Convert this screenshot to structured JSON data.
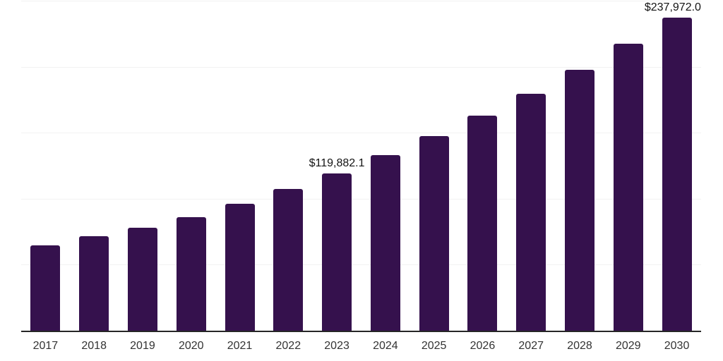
{
  "chart_data": {
    "type": "bar",
    "title": "",
    "xlabel": "",
    "ylabel": "",
    "categories": [
      "2017",
      "2018",
      "2019",
      "2020",
      "2021",
      "2022",
      "2023",
      "2024",
      "2025",
      "2026",
      "2027",
      "2028",
      "2029",
      "2030"
    ],
    "values": [
      65400,
      71900,
      78300,
      86500,
      96700,
      107900,
      119882.1,
      133600,
      148000,
      163500,
      180000,
      198200,
      218000,
      237972.0
    ],
    "value_labels": {
      "2023": "$119,882.1",
      "2030": "$237,972.0"
    },
    "ylim": [
      0,
      250000
    ],
    "gridline_interval": 50000,
    "grid": "horizontal",
    "legend_position": "none",
    "colors": {
      "bar": "#35114D",
      "axis_line": "#262626",
      "gridline": "#f2f2f2",
      "value_label_text": "#131313",
      "tick_text": "#333333",
      "background": "#ffffff"
    }
  }
}
